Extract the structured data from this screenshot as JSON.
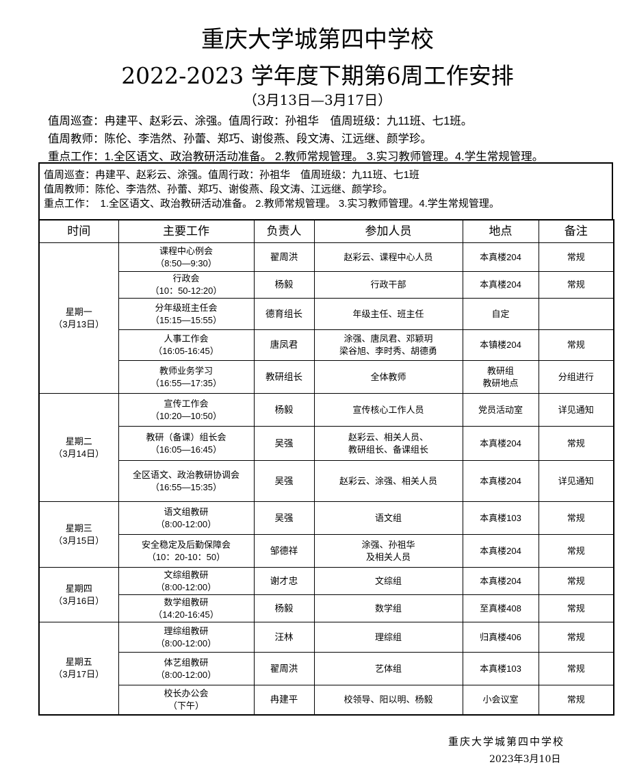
{
  "title": {
    "school": "重庆大学城第四中学校",
    "main": "2022-2023 学年度下期第6周工作安排",
    "dates": "（3月13日—3月17日）"
  },
  "info_lines": [
    "值周巡查：冉建平、赵彩云、涂强。值周行政：孙祖华　值周班级：九11班、七1班。",
    "值周教师：陈伦、李浩然、孙蕾、郑巧、谢俊燕、段文涛、江远继、颜学珍。",
    "重点工作：1.全区语文、政治教研活动准备。 2.教师常规管理。 3.实习教师管理。4.学生常规管理。"
  ],
  "box_lines": [
    "值周巡查：冉建平、赵彩云、涂强。值周行政：孙祖华　值周班级：九11班、七1班",
    "值周教师：陈伦、李浩然、孙蕾、郑巧、谢俊燕、段文涛、江远继、颜学珍。",
    "重点工作：　1.全区语文、政治教研活动准备。 2.教师常规管理。 3.实习教师管理。4.学生常规管理。"
  ],
  "headers": [
    "时间",
    "主要工作",
    "负责人",
    "参加人员",
    "地点",
    "备注"
  ],
  "days": [
    {
      "day": "星期一",
      "date": "（3月13日）",
      "rows": [
        {
          "work": "课程中心例会",
          "time": "（8:50—9:30）",
          "lead": "翟周洪",
          "people": "赵彩云、课程中心人员",
          "place": "本真楼204",
          "note": "常规",
          "h": 42
        },
        {
          "work": "行政会",
          "time": "（10：50-12:20）",
          "lead": "杨毅",
          "people": "行政干部",
          "place": "本真楼204",
          "note": "常规",
          "h": 39
        },
        {
          "work": "分年级班主任会",
          "time": "（15:15—15:55）",
          "lead": "德育组长",
          "people": "年级主任、班主任",
          "place": "自定",
          "note": "",
          "h": 46
        },
        {
          "work": "人事工作会",
          "time": "（16:05-16:45）",
          "lead": "唐凤君",
          "people": "涂强、唐凤君、邓颖玥\n梁谷旭、李时秀、胡德勇",
          "place": "本镇楼204",
          "note": "常规",
          "h": 45
        },
        {
          "work": "教师业务学习",
          "time": "（16:55—17:35）",
          "lead": "教研组长",
          "people": "全体教师",
          "place": "教研组\n教研地点",
          "note": "分组进行",
          "h": 48
        }
      ]
    },
    {
      "day": "星期二",
      "date": "（3月14日）",
      "rows": [
        {
          "work": "宣传工作会",
          "time": "（10:20—10:50）",
          "lead": "杨毅",
          "people": "宣传核心工作人员",
          "place": "党员活动室",
          "note": "详见通知",
          "h": 48
        },
        {
          "work": "教研（备课）组长会",
          "time": "（16:05—16:45）",
          "lead": "吴强",
          "people": "赵彩云、相关人员、\n教研组长、备课组长",
          "place": "本真楼204",
          "note": "常规",
          "h": 50
        },
        {
          "work": "全区语文、政治教研协调会",
          "time": "（16:55—15:35）",
          "lead": "吴强",
          "people": "赵彩云、涂强、相关人员",
          "place": "本真楼204",
          "note": "详见通知",
          "h": 60
        }
      ]
    },
    {
      "day": "星期三",
      "date": "（3月15日）",
      "rows": [
        {
          "work": "语文组教研",
          "time": "（8:00-12:00）",
          "lead": "吴强",
          "people": "语文组",
          "place": "本真楼103",
          "note": "常规",
          "h": 48
        },
        {
          "work": "安全稳定及后勤保障会",
          "time": "（10：20-10：50）",
          "lead": "邹德祥",
          "people": "涂强、孙祖华\n及相关人员",
          "place": "本真楼204",
          "note": "常规",
          "h": 48
        }
      ]
    },
    {
      "day": "星期四",
      "date": "（3月16日）",
      "rows": [
        {
          "work": "文综组教研",
          "time": "（8:00-12:00）",
          "lead": "谢才忠",
          "people": "文综组",
          "place": "本真楼204",
          "note": "常规",
          "h": 40
        },
        {
          "work": "数学组教研",
          "time": "（14:20-16:45）",
          "lead": "杨毅",
          "people": "数学组",
          "place": "至真楼408",
          "note": "常规",
          "h": 40
        }
      ]
    },
    {
      "day": "星期五",
      "date": "（3月17日）",
      "rows": [
        {
          "work": "理综组教研",
          "time": "（8:00-12:00）",
          "lead": "汪林",
          "people": "理综组",
          "place": "归真楼406",
          "note": "常规",
          "h": 44
        },
        {
          "work": "体艺组教研",
          "time": "（8:00-12:00）",
          "lead": "翟周洪",
          "people": "艺体组",
          "place": "本真楼103",
          "note": "常规",
          "h": 48
        },
        {
          "work": "校长办公会",
          "time": "（下午）",
          "lead": "冉建平",
          "people": "校领导、阳以明、杨毅",
          "place": "小会议室",
          "note": "常规",
          "h": 43
        }
      ]
    }
  ],
  "footer": {
    "school": "重庆大学城第四中学校",
    "date": "2023年3月10日"
  }
}
